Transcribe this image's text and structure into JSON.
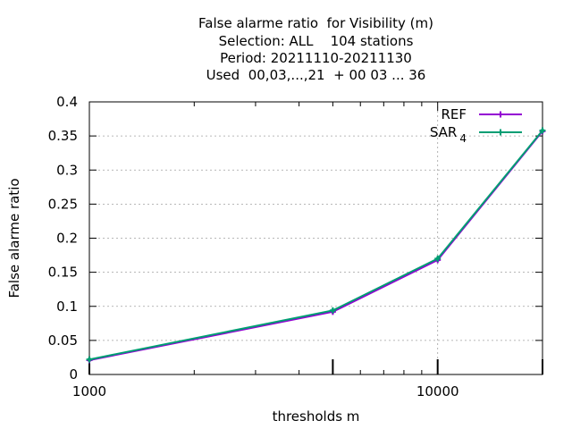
{
  "chart_data": {
    "type": "line",
    "title_lines": [
      "False alarme ratio  for Visibility (m)",
      "Selection: ALL    104 stations",
      "Period: 20211110-20211130",
      "Used  00,03,...,21  + 00 03 ... 36"
    ],
    "xlabel": "thresholds m",
    "ylabel": "False alarme ratio",
    "x_scale": "log",
    "xlim": [
      1000,
      20000
    ],
    "ylim": [
      0,
      0.4
    ],
    "x_tick_labels": [
      {
        "value": 1000,
        "label": "1000"
      },
      {
        "value": 10000,
        "label": "10000"
      }
    ],
    "y_ticks": [
      {
        "value": 0,
        "label": "0"
      },
      {
        "value": 0.05,
        "label": "0.05"
      },
      {
        "value": 0.1,
        "label": "0.1"
      },
      {
        "value": 0.15,
        "label": "0.15"
      },
      {
        "value": 0.2,
        "label": "0.2"
      },
      {
        "value": 0.25,
        "label": "0.25"
      },
      {
        "value": 0.3,
        "label": "0.3"
      },
      {
        "value": 0.35,
        "label": "0.35"
      },
      {
        "value": 0.4,
        "label": "0.4"
      }
    ],
    "grid": true,
    "legend_position": "top-right",
    "x": [
      1000,
      5000,
      10000,
      20000
    ],
    "series": [
      {
        "name": "REF",
        "color": "#9400d3",
        "values": [
          0.021,
          0.092,
          0.168,
          0.357
        ]
      },
      {
        "name": "SAR",
        "name_subscript": "4",
        "color": "#009e73",
        "values": [
          0.022,
          0.094,
          0.17,
          0.358
        ]
      }
    ]
  }
}
